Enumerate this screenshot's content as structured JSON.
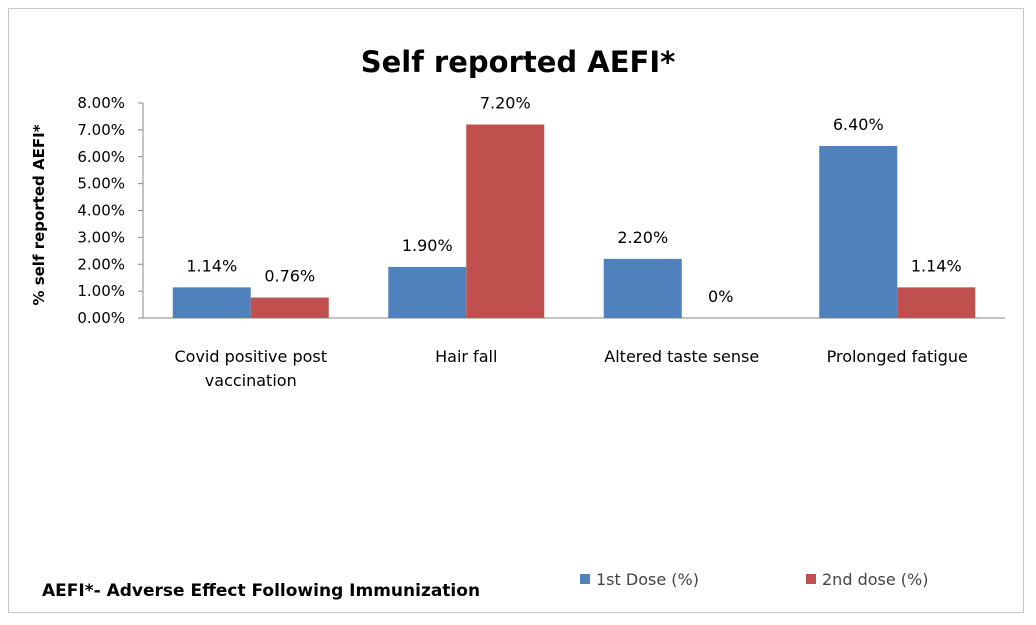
{
  "chart_data": {
    "type": "bar",
    "title": "Self reported AEFI*",
    "ylabel": "% self reported AEFI*",
    "xlabel": "",
    "categories": [
      [
        "Covid positive post",
        "vaccination"
      ],
      [
        "Hair fall"
      ],
      [
        "Altered taste sense"
      ],
      [
        "Prolonged fatigue"
      ]
    ],
    "series": [
      {
        "name": "1st Dose (%)",
        "values": [
          1.14,
          1.9,
          2.2,
          6.4
        ],
        "labels": [
          "1.14%",
          "1.90%",
          "2.20%",
          "6.40%"
        ],
        "color": "#4F81BD"
      },
      {
        "name": "2nd dose (%)",
        "values": [
          0.76,
          7.2,
          0,
          1.14
        ],
        "labels": [
          "0.76%",
          "7.20%",
          "0%",
          "1.14%"
        ],
        "color": "#C0504D"
      }
    ],
    "ylim": [
      0,
      8
    ],
    "yticks": [
      0,
      1,
      2,
      3,
      4,
      5,
      6,
      7,
      8
    ],
    "ytick_labels": [
      "0.00%",
      "1.00%",
      "2.00%",
      "3.00%",
      "4.00%",
      "5.00%",
      "6.00%",
      "7.00%",
      "8.00%"
    ],
    "grid": false,
    "legend_position": "bottom-right",
    "footnote": "AEFI*- Adverse Effect Following Immunization"
  }
}
